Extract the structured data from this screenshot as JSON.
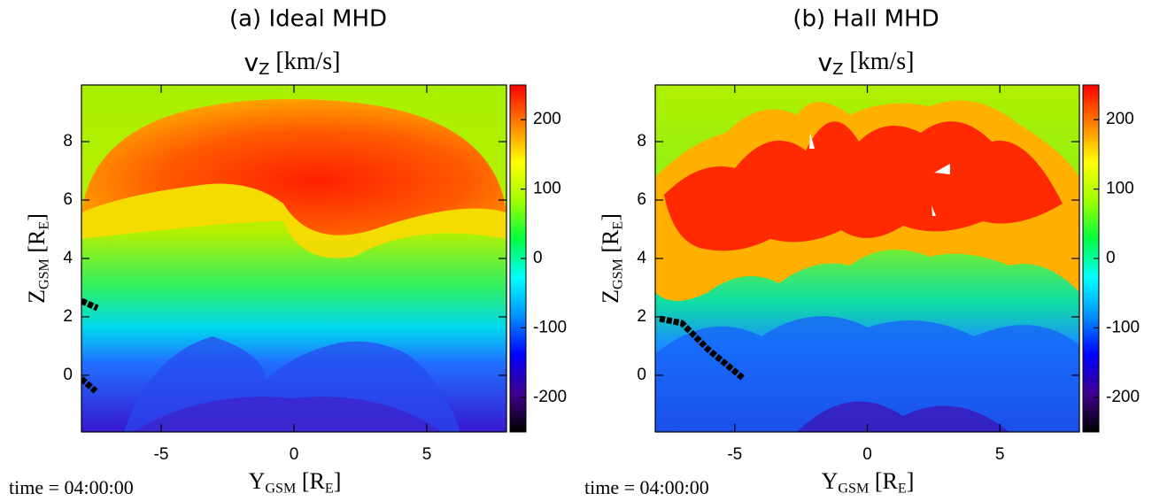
{
  "chart_data": [
    {
      "type": "heatmap",
      "title": "(a) Ideal MHD",
      "subtitle": [
        "v",
        "Z",
        " [km/s]"
      ],
      "xlabel": [
        "Y",
        "GSM",
        " [R",
        "E",
        "]"
      ],
      "ylabel": [
        "Z",
        "GSM",
        " [R",
        "E",
        "]"
      ],
      "xlim": [
        -8,
        8
      ],
      "ylim": [
        -1.94,
        9.94
      ],
      "xticks": [
        -5,
        0,
        5
      ],
      "yticks": [
        0,
        2,
        4,
        6,
        8
      ],
      "colorbar": {
        "lim": [
          -250,
          250
        ],
        "ticks": [
          -200,
          -100,
          0,
          100,
          200
        ]
      },
      "colormap": [
        "#000000",
        "#400090",
        "#0000ff",
        "#0090ff",
        "#00ffff",
        "#00ff40",
        "#a0ff00",
        "#ffff00",
        "#ff8000",
        "#ff0000"
      ],
      "annotation": "time = 04:00:00"
    },
    {
      "type": "heatmap",
      "title": "(b) Hall MHD",
      "subtitle": [
        "v",
        "Z",
        " [km/s]"
      ],
      "xlabel": [
        "Y",
        "GSM",
        " [R",
        "E",
        "]"
      ],
      "ylabel": [
        "Z",
        "GSM",
        " [R",
        "E",
        "]"
      ],
      "xlim": [
        -8,
        8
      ],
      "ylim": [
        -1.94,
        9.94
      ],
      "xticks": [
        -5,
        0,
        5
      ],
      "yticks": [
        0,
        2,
        4,
        6,
        8
      ],
      "colorbar": {
        "lim": [
          -250,
          250
        ],
        "ticks": [
          -200,
          -100,
          0,
          100,
          200
        ]
      },
      "colormap": [
        "#000000",
        "#400090",
        "#0000ff",
        "#0090ff",
        "#00ffff",
        "#00ff40",
        "#a0ff00",
        "#ffff00",
        "#ff8000",
        "#ff0000"
      ],
      "annotation": "time = 04:00:00"
    }
  ]
}
